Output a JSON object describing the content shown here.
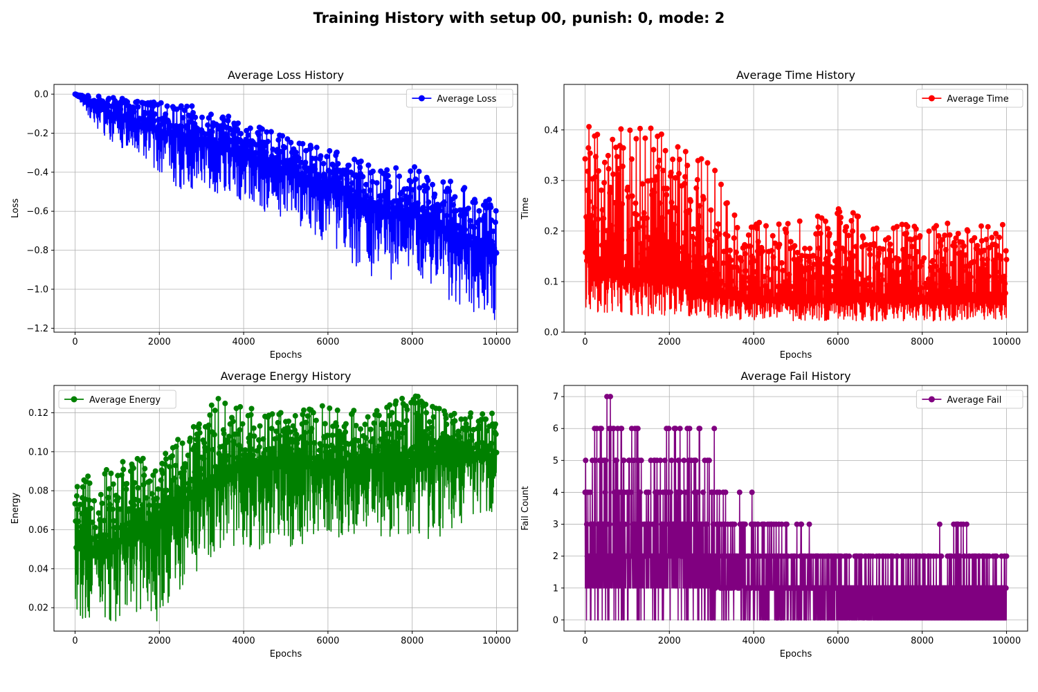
{
  "figure": {
    "title": "Training History with setup 00, punish: 0, mode: 2"
  },
  "chart_data": [
    {
      "type": "line",
      "title": "Average Loss History",
      "xlabel": "Epochs",
      "ylabel": "Loss",
      "xlim": [
        -500,
        10500
      ],
      "ylim": [
        -1.22,
        0.05
      ],
      "xticks": [
        0,
        2000,
        4000,
        6000,
        8000,
        10000
      ],
      "xtick_labels": [
        "0",
        "2000",
        "4000",
        "6000",
        "8000",
        "10000"
      ],
      "yticks": [
        0.0,
        -0.2,
        -0.4,
        -0.6,
        -0.8,
        -1.0,
        -1.2
      ],
      "ytick_labels": [
        "0.0",
        "−0.2",
        "−0.4",
        "−0.6",
        "−0.8",
        "−1.0",
        "−1.2"
      ],
      "grid": true,
      "legend": "upper-right",
      "series": [
        {
          "name": "Average Loss",
          "color": "#0000ff",
          "marker": "circle",
          "n_points": 10001,
          "envelope": {
            "x": [
              0,
              500,
              1000,
              1500,
              2000,
              2500,
              3000,
              3500,
              4000,
              4500,
              5000,
              5500,
              6000,
              6500,
              7000,
              7500,
              8000,
              8500,
              9000,
              9500,
              10000
            ],
            "upper": [
              0.0,
              -0.01,
              -0.02,
              -0.03,
              -0.04,
              -0.05,
              -0.07,
              -0.1,
              -0.14,
              -0.18,
              -0.22,
              -0.25,
              -0.28,
              -0.32,
              -0.36,
              -0.38,
              -0.36,
              -0.42,
              -0.45,
              -0.5,
              -0.55
            ],
            "lower": [
              0.0,
              -0.17,
              -0.28,
              -0.32,
              -0.4,
              -0.5,
              -0.47,
              -0.52,
              -0.56,
              -0.6,
              -0.64,
              -0.7,
              -0.77,
              -0.85,
              -0.95,
              -0.98,
              -0.92,
              -1.02,
              -1.08,
              -1.12,
              -1.16
            ],
            "mean": [
              0.0,
              -0.07,
              -0.12,
              -0.16,
              -0.19,
              -0.22,
              -0.25,
              -0.28,
              -0.32,
              -0.36,
              -0.4,
              -0.44,
              -0.48,
              -0.53,
              -0.59,
              -0.63,
              -0.62,
              -0.68,
              -0.73,
              -0.78,
              -0.82
            ]
          }
        }
      ]
    },
    {
      "type": "line",
      "title": "Average Time History",
      "xlabel": "Epochs",
      "ylabel": "Time",
      "xlim": [
        -500,
        10500
      ],
      "ylim": [
        0.0,
        0.49
      ],
      "xticks": [
        0,
        2000,
        4000,
        6000,
        8000,
        10000
      ],
      "xtick_labels": [
        "0",
        "2000",
        "4000",
        "6000",
        "8000",
        "10000"
      ],
      "yticks": [
        0.0,
        0.1,
        0.2,
        0.3,
        0.4
      ],
      "ytick_labels": [
        "0.0",
        "0.1",
        "0.2",
        "0.3",
        "0.4"
      ],
      "grid": true,
      "legend": "upper-right",
      "series": [
        {
          "name": "Average Time",
          "color": "#ff0000",
          "marker": "circle",
          "n_points": 10001,
          "envelope": {
            "x": [
              0,
              500,
              1000,
              1500,
              2000,
              2500,
              3000,
              3500,
              4000,
              5000,
              6000,
              7000,
              8000,
              9000,
              10000
            ],
            "upper": [
              0.46,
              0.41,
              0.4,
              0.41,
              0.4,
              0.35,
              0.34,
              0.25,
              0.22,
              0.22,
              0.25,
              0.22,
              0.21,
              0.22,
              0.22
            ],
            "lower": [
              0.04,
              0.035,
              0.03,
              0.03,
              0.03,
              0.03,
              0.028,
              0.025,
              0.023,
              0.022,
              0.022,
              0.022,
              0.022,
              0.022,
              0.022
            ],
            "mean": [
              0.14,
              0.12,
              0.11,
              0.1,
              0.095,
              0.085,
              0.075,
              0.065,
              0.062,
              0.06,
              0.06,
              0.06,
              0.06,
              0.06,
              0.06
            ]
          }
        }
      ]
    },
    {
      "type": "line",
      "title": "Average Energy History",
      "xlabel": "Epochs",
      "ylabel": "Energy",
      "xlim": [
        -500,
        10500
      ],
      "ylim": [
        0.008,
        0.134
      ],
      "xticks": [
        0,
        2000,
        4000,
        6000,
        8000,
        10000
      ],
      "xtick_labels": [
        "0",
        "2000",
        "4000",
        "6000",
        "8000",
        "10000"
      ],
      "yticks": [
        0.02,
        0.04,
        0.06,
        0.08,
        0.1,
        0.12
      ],
      "ytick_labels": [
        "0.02",
        "0.04",
        "0.06",
        "0.08",
        "0.10",
        "0.12"
      ],
      "grid": true,
      "legend": "upper-left",
      "series": [
        {
          "name": "Average Energy",
          "color": "#008000",
          "marker": "circle",
          "n_points": 10001,
          "envelope": {
            "x": [
              0,
              500,
              1000,
              1500,
              2000,
              2500,
              3000,
              3500,
              4000,
              5000,
              6000,
              7000,
              8000,
              9000,
              10000
            ],
            "upper": [
              0.084,
              0.09,
              0.095,
              0.1,
              0.103,
              0.11,
              0.12,
              0.13,
              0.125,
              0.12,
              0.125,
              0.12,
              0.13,
              0.12,
              0.123
            ],
            "lower": [
              0.014,
              0.015,
              0.012,
              0.015,
              0.013,
              0.03,
              0.04,
              0.05,
              0.05,
              0.05,
              0.055,
              0.058,
              0.05,
              0.06,
              0.07
            ],
            "mean": [
              0.05,
              0.05,
              0.052,
              0.058,
              0.065,
              0.072,
              0.08,
              0.088,
              0.09,
              0.092,
              0.093,
              0.094,
              0.095,
              0.096,
              0.097
            ]
          }
        }
      ]
    },
    {
      "type": "line",
      "title": "Average Fail History",
      "xlabel": "Epochs",
      "ylabel": "Fail Count",
      "xlim": [
        -500,
        10500
      ],
      "ylim": [
        -0.35,
        7.35
      ],
      "xticks": [
        0,
        2000,
        4000,
        6000,
        8000,
        10000
      ],
      "xtick_labels": [
        "0",
        "2000",
        "4000",
        "6000",
        "8000",
        "10000"
      ],
      "yticks": [
        0,
        1,
        2,
        3,
        4,
        5,
        6,
        7
      ],
      "ytick_labels": [
        "0",
        "1",
        "2",
        "3",
        "4",
        "5",
        "6",
        "7"
      ],
      "grid": true,
      "legend": "upper-right",
      "series": [
        {
          "name": "Average Fail",
          "color": "#800080",
          "marker": "circle",
          "n_points": 10001,
          "integer_values": true,
          "envelope": {
            "x": [
              0,
              600,
              1400,
              2400,
              3000,
              3350,
              5100,
              7000,
              9000,
              10000
            ],
            "upper": [
              5,
              7,
              6,
              6,
              6,
              4,
              3,
              2,
              3,
              2
            ],
            "lower": [
              0,
              0,
              0,
              0,
              0,
              0,
              0,
              0,
              0,
              0
            ],
            "mean": [
              1.5,
              1.6,
              1.7,
              1.7,
              1.5,
              1.0,
              0.7,
              0.5,
              0.5,
              0.5
            ]
          }
        }
      ]
    }
  ]
}
